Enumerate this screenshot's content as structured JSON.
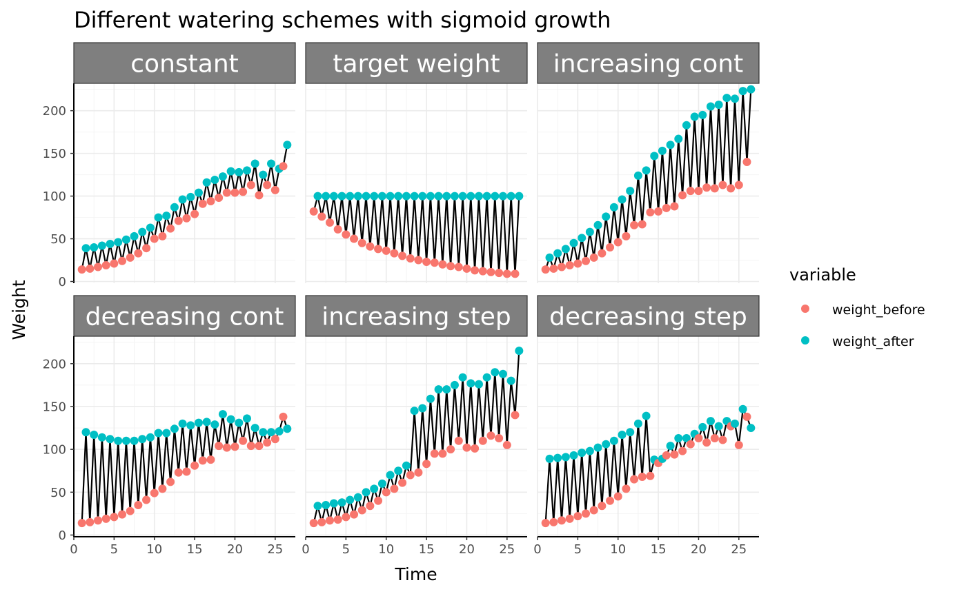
{
  "chart_data": {
    "type": "scatter",
    "title": "Different watering schemes with sigmoid growth",
    "xlabel": "Time",
    "ylabel": "Weight",
    "xlim": [
      0,
      27.5
    ],
    "ylim": [
      -2,
      232
    ],
    "x_ticks": [
      0,
      5,
      10,
      15,
      20,
      25
    ],
    "y_ticks": [
      0,
      50,
      100,
      150,
      200
    ],
    "grid": true,
    "legend": {
      "title": "variable",
      "position": "right",
      "entries": [
        {
          "name": "weight_before",
          "color": "#F8766D"
        },
        {
          "name": "weight_after",
          "color": "#00BFC4"
        }
      ]
    },
    "line_color": "#000000",
    "panels": [
      {
        "name": "constant",
        "x_before": [
          1,
          2,
          3,
          4,
          5,
          6,
          7,
          8,
          9,
          10,
          11,
          12,
          13,
          14,
          15,
          16,
          17,
          18,
          19,
          20,
          21,
          22,
          23,
          24,
          25,
          26
        ],
        "weight_before": [
          14,
          15,
          17,
          19,
          21,
          24,
          28,
          33,
          39,
          50,
          53,
          62,
          71,
          74,
          79,
          91,
          94,
          98,
          104,
          104,
          105,
          113,
          101,
          113,
          107,
          135
        ],
        "x_after": [
          1.5,
          2.5,
          3.5,
          4.5,
          5.5,
          6.5,
          7.5,
          8.5,
          9.5,
          10.5,
          11.5,
          12.5,
          13.5,
          14.5,
          15.5,
          16.5,
          17.5,
          18.5,
          19.5,
          20.5,
          21.5,
          22.5,
          23.5,
          24.5,
          25.5,
          26.5
        ],
        "weight_after": [
          39,
          40,
          42,
          44,
          46,
          49,
          53,
          58,
          63,
          75,
          77,
          87,
          96,
          99,
          104,
          116,
          119,
          123,
          129,
          128,
          130,
          138,
          125,
          138,
          132,
          160
        ]
      },
      {
        "name": "target weight",
        "x_before": [
          1,
          2,
          3,
          4,
          5,
          6,
          7,
          8,
          9,
          10,
          11,
          12,
          13,
          14,
          15,
          16,
          17,
          18,
          19,
          20,
          21,
          22,
          23,
          24,
          25,
          26
        ],
        "weight_before": [
          82,
          76,
          69,
          61,
          55,
          50,
          45,
          41,
          38,
          36,
          33,
          30,
          27,
          25,
          23,
          22,
          20,
          18,
          17,
          15,
          13,
          12,
          11,
          10,
          9,
          9
        ],
        "x_after": [
          1.5,
          2.5,
          3.5,
          4.5,
          5.5,
          6.5,
          7.5,
          8.5,
          9.5,
          10.5,
          11.5,
          12.5,
          13.5,
          14.5,
          15.5,
          16.5,
          17.5,
          18.5,
          19.5,
          20.5,
          21.5,
          22.5,
          23.5,
          24.5,
          25.5,
          26.5
        ],
        "weight_after": [
          100,
          100,
          100,
          100,
          100,
          100,
          100,
          100,
          100,
          100,
          100,
          100,
          100,
          100,
          100,
          100,
          100,
          100,
          100,
          100,
          100,
          100,
          100,
          100,
          100,
          100
        ]
      },
      {
        "name": "increasing cont",
        "x_before": [
          1,
          2,
          3,
          4,
          5,
          6,
          7,
          8,
          9,
          10,
          11,
          12,
          13,
          14,
          15,
          16,
          17,
          18,
          19,
          20,
          21,
          22,
          23,
          24,
          25,
          26
        ],
        "weight_before": [
          14,
          15,
          17,
          19,
          21,
          24,
          28,
          33,
          40,
          46,
          53,
          66,
          67,
          81,
          82,
          86,
          88,
          101,
          106,
          106,
          110,
          109,
          113,
          109,
          113,
          140
        ],
        "x_after": [
          1.5,
          2.5,
          3.5,
          4.5,
          5.5,
          6.5,
          7.5,
          8.5,
          9.5,
          10.5,
          11.5,
          12.5,
          13.5,
          14.5,
          15.5,
          16.5,
          17.5,
          18.5,
          19.5,
          20.5,
          21.5,
          22.5,
          23.5,
          24.5,
          25.5,
          26.5
        ],
        "weight_after": [
          28,
          33,
          38,
          45,
          51,
          58,
          66,
          76,
          87,
          96,
          106,
          124,
          130,
          147,
          153,
          160,
          167,
          183,
          193,
          195,
          205,
          207,
          215,
          214,
          223,
          225
        ]
      },
      {
        "name": "decreasing cont",
        "x_before": [
          1,
          2,
          3,
          4,
          5,
          6,
          7,
          8,
          9,
          10,
          11,
          12,
          13,
          14,
          15,
          16,
          17,
          18,
          19,
          20,
          21,
          22,
          23,
          24,
          25,
          26
        ],
        "weight_before": [
          14,
          15,
          17,
          19,
          21,
          24,
          28,
          35,
          41,
          49,
          54,
          62,
          73,
          74,
          81,
          87,
          88,
          104,
          102,
          103,
          110,
          104,
          104,
          108,
          112,
          138
        ],
        "x_after": [
          1.5,
          2.5,
          3.5,
          4.5,
          5.5,
          6.5,
          7.5,
          8.5,
          9.5,
          10.5,
          11.5,
          12.5,
          13.5,
          14.5,
          15.5,
          16.5,
          17.5,
          18.5,
          19.5,
          20.5,
          21.5,
          22.5,
          23.5,
          24.5,
          25.5,
          26.5
        ],
        "weight_after": [
          120,
          117,
          114,
          112,
          110,
          110,
          110,
          112,
          114,
          119,
          119,
          124,
          130,
          128,
          131,
          132,
          129,
          141,
          135,
          131,
          136,
          125,
          120,
          120,
          121,
          124
        ]
      },
      {
        "name": "increasing step",
        "x_before": [
          1,
          2,
          3,
          4,
          5,
          6,
          7,
          8,
          9,
          10,
          11,
          12,
          13,
          14,
          15,
          16,
          17,
          18,
          19,
          20,
          21,
          22,
          23,
          24,
          25,
          26
        ],
        "weight_before": [
          14,
          15,
          17,
          18,
          21,
          24,
          29,
          34,
          40,
          50,
          54,
          61,
          70,
          73,
          83,
          95,
          95,
          100,
          110,
          102,
          101,
          110,
          116,
          113,
          105,
          140
        ],
        "x_after": [
          1.5,
          2.5,
          3.5,
          4.5,
          5.5,
          6.5,
          7.5,
          8.5,
          9.5,
          10.5,
          11.5,
          12.5,
          13.5,
          14.5,
          15.5,
          16.5,
          17.5,
          18.5,
          19.5,
          20.5,
          21.5,
          22.5,
          23.5,
          24.5,
          25.5,
          26.5
        ],
        "weight_after": [
          34,
          35,
          37,
          38,
          41,
          44,
          50,
          54,
          60,
          70,
          75,
          81,
          145,
          148,
          159,
          170,
          170,
          175,
          184,
          177,
          176,
          184,
          190,
          188,
          180,
          215
        ]
      },
      {
        "name": "decreasing step",
        "x_before": [
          1,
          2,
          3,
          4,
          5,
          6,
          7,
          8,
          9,
          10,
          11,
          12,
          13,
          14,
          15,
          16,
          17,
          18,
          19,
          20,
          21,
          22,
          23,
          24,
          25,
          26
        ],
        "weight_before": [
          14,
          15,
          17,
          19,
          22,
          25,
          29,
          34,
          40,
          45,
          54,
          65,
          68,
          69,
          84,
          93,
          94,
          98,
          106,
          113,
          108,
          113,
          111,
          127,
          105,
          138
        ],
        "x_after": [
          1.5,
          2.5,
          3.5,
          4.5,
          5.5,
          6.5,
          7.5,
          8.5,
          9.5,
          10.5,
          11.5,
          12.5,
          13.5,
          14.5,
          15.5,
          16.5,
          17.5,
          18.5,
          19.5,
          20.5,
          21.5,
          22.5,
          23.5,
          24.5,
          25.5,
          26.5
        ],
        "weight_after": [
          89,
          90,
          91,
          93,
          96,
          98,
          102,
          106,
          110,
          117,
          120,
          130,
          139,
          88,
          89,
          104,
          113,
          113,
          118,
          126,
          133,
          127,
          133,
          130,
          147,
          125
        ]
      }
    ]
  }
}
